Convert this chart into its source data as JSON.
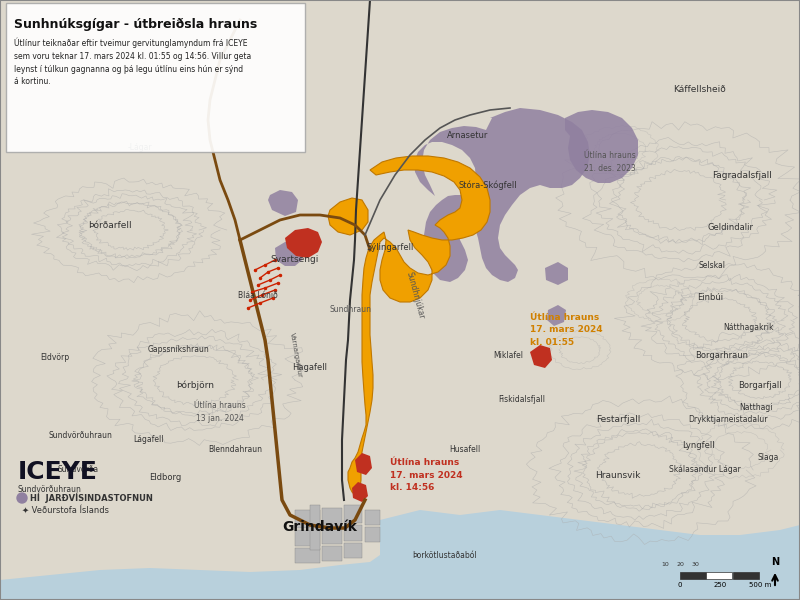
{
  "title": "Sunhnúksgígar - útbreiðsla hrauns",
  "subtitle": "Útlínur teiknaðar eftir tveimur gervitunglamyndum frá ICEYE\nsem voru teknar 17. mars 2024 kl. 01:55 og 14:56. Villur geta\nleynst í túlkun gagnanna og þá legu útlínu eins hún er sýnd\ná kortinu.",
  "bg_color": "#ddd8cc",
  "map_bg": "#e8e4dc",
  "ocean_color": "#b8d0dc",
  "lava_orange_color": "#f0a000",
  "lava_red_color": "#c03020",
  "lava_purple_color": "#9080a0",
  "lava_dark_purple": "#706080",
  "road_brown": "#7a4a10",
  "road_dark": "#444444",
  "text_orange": "#d08000",
  "text_red": "#c03020",
  "text_dark": "#333333",
  "label_orange": "Útlína hrauns\n17. mars 2024\nkl. 01:55",
  "label_red": "Útlína hrauns\n17. mars 2024\nkl. 14:56",
  "label_dec": "Útlína hrauns\n21. des. 2023",
  "label_jan": "Útlína hrauns\n13 jan. 2024"
}
